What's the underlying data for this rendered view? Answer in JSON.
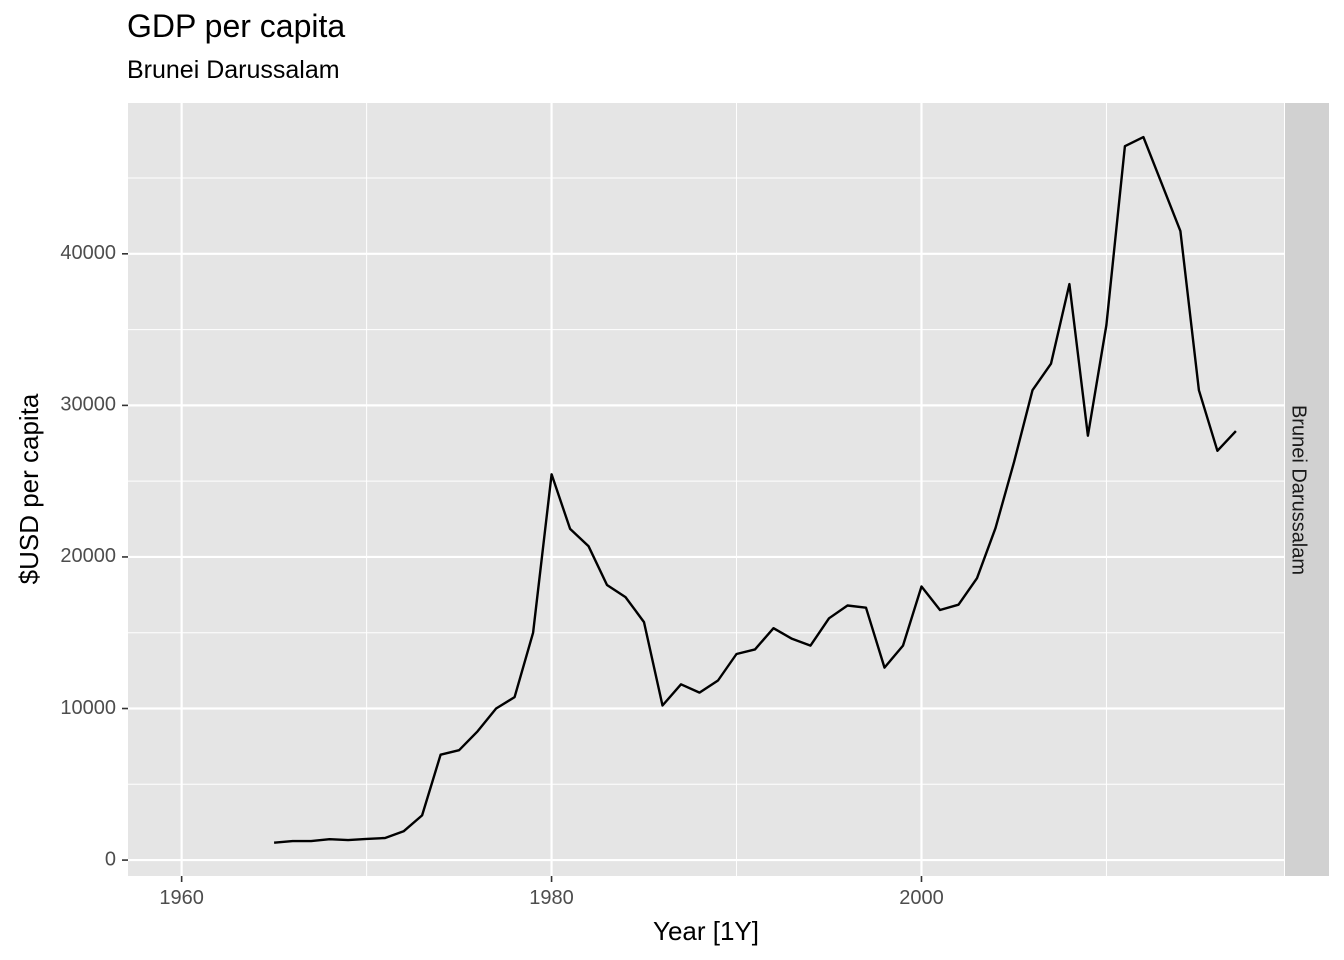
{
  "chart_data": {
    "type": "line",
    "title": "GDP per capita",
    "subtitle": "Brunei Darussalam",
    "xlabel": "Year [1Y]",
    "ylabel": "$USD per capita",
    "facet_label": "Brunei Darussalam",
    "xlim": [
      1957.1,
      2019.6
    ],
    "ylim": [
      -1050,
      49950
    ],
    "x_ticks": [
      1960,
      1980,
      2000
    ],
    "y_ticks": [
      0,
      10000,
      20000,
      30000,
      40000
    ],
    "x_tick_labels": [
      "1960",
      "1980",
      "2000"
    ],
    "y_tick_labels": [
      "0",
      "10000",
      "20000",
      "30000",
      "40000"
    ],
    "grid": true,
    "series": [
      {
        "x": [
          1965,
          1966,
          1967,
          1968,
          1969,
          1970,
          1971,
          1972,
          1973,
          1974,
          1975,
          1976,
          1977,
          1978,
          1979,
          1980,
          1981,
          1982,
          1983,
          1984,
          1985,
          1986,
          1987,
          1988,
          1989,
          1990,
          1991,
          1992,
          1993,
          1994,
          1995,
          1996,
          1997,
          1998,
          1999,
          2000,
          2001,
          2002,
          2003,
          2004,
          2005,
          2006,
          2007,
          2008,
          2009,
          2010,
          2011,
          2012,
          2013,
          2014,
          2015,
          2016,
          2017
        ],
        "values": [
          1150,
          1250,
          1250,
          1380,
          1320,
          1400,
          1460,
          1900,
          2950,
          6950,
          7250,
          8500,
          10000,
          10750,
          15000,
          25450,
          21850,
          20700,
          18150,
          17350,
          15700,
          10200,
          11600,
          11050,
          11850,
          13600,
          13900,
          15300,
          14600,
          14150,
          15950,
          16800,
          16650,
          12700,
          14150,
          18050,
          16500,
          16850,
          18600,
          21900,
          26250,
          31000,
          32750,
          38000,
          28000,
          35300,
          47100,
          47700,
          44600,
          41500,
          31000,
          27000,
          28300
        ]
      }
    ],
    "colors": {
      "panel_bg": "#e5e5e5",
      "grid": "#ffffff",
      "line": "#000000",
      "strip_bg": "#d1d1d1",
      "tick_text": "#4d4d4d",
      "axis_text": "#000000"
    }
  }
}
